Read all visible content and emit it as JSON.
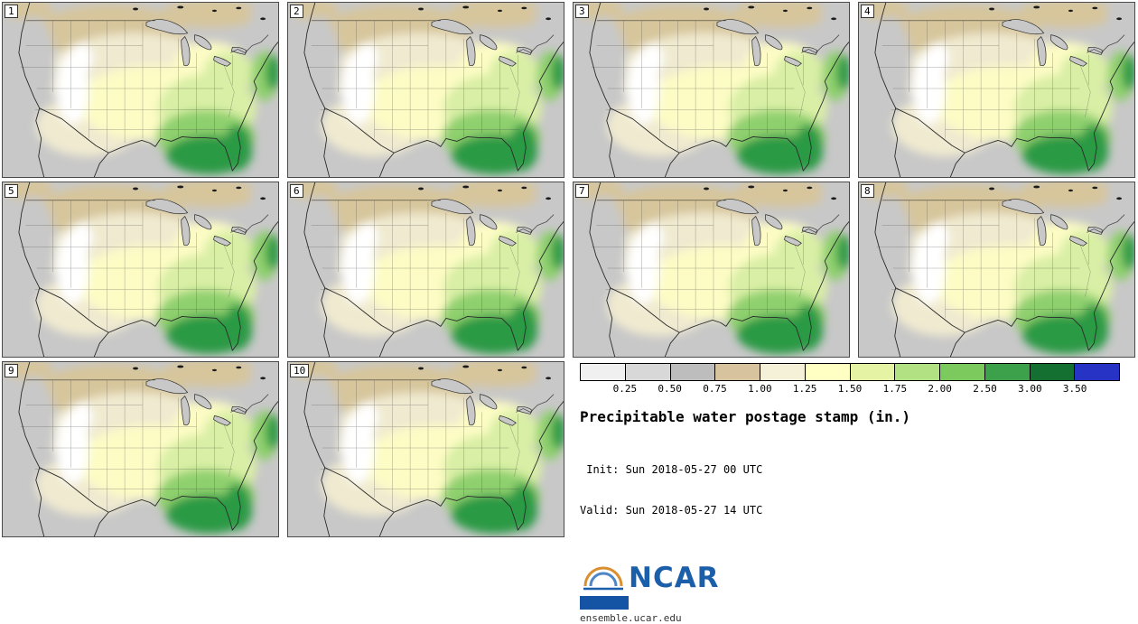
{
  "panels": [
    {
      "label": "1"
    },
    {
      "label": "2"
    },
    {
      "label": "3"
    },
    {
      "label": "4"
    },
    {
      "label": "5"
    },
    {
      "label": "6"
    },
    {
      "label": "7"
    },
    {
      "label": "8"
    },
    {
      "label": "9"
    },
    {
      "label": "10"
    }
  ],
  "legend": {
    "colorbar": {
      "colors": [
        "#f0f0f0",
        "#d8d8d8",
        "#bdbdbd",
        "#d7c49e",
        "#f5f0d8",
        "#ffffc4",
        "#e4f3a4",
        "#b2e184",
        "#7cc95e",
        "#3da14b",
        "#137031",
        "#2633c4"
      ],
      "ticks": [
        "0.25",
        "0.50",
        "0.75",
        "1.00",
        "1.25",
        "1.50",
        "1.75",
        "2.00",
        "2.50",
        "3.00",
        "3.50"
      ]
    },
    "title": "Precipitable water postage stamp (in.)",
    "init_label": " Init: Sun 2018-05-27 00 UTC",
    "valid_label": "Valid: Sun 2018-05-27 14 UTC",
    "logo_text": "NCAR",
    "site_url": "ensemble.ucar.edu"
  },
  "map_palette": {
    "gray": "#c8c8c8",
    "tan": "#d7c69c",
    "cream": "#f0ead0",
    "paleyellow": "#fdfcc5",
    "lightgreen": "#d9efa5",
    "medgreen": "#8fd06e",
    "darkgreen": "#2c9a44",
    "white": "#ffffff",
    "line": "#2a2a2a"
  }
}
